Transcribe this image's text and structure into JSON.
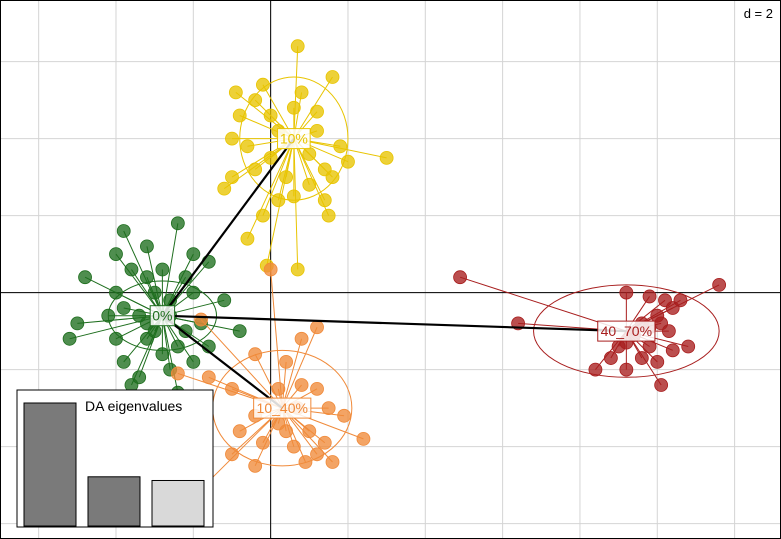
{
  "chart_data": {
    "type": "scatter",
    "corner_label": "d = 2",
    "grid_step": 1,
    "xlim": [
      -3.5,
      6.6
    ],
    "ylim": [
      -3.2,
      3.8
    ],
    "axes_origin": [
      0,
      0
    ],
    "colors": {
      "0%": "#1e6e1e",
      "10%": "#e8c400",
      "10_40%": "#f08a3a",
      "40_70%": "#a81e1e"
    },
    "groups": [
      {
        "label": "0%",
        "color": "#1e6e1e",
        "center": [
          -1.4,
          -0.3
        ],
        "ellipse": {
          "rx": 0.7,
          "ry": 0.45,
          "angle": 0
        },
        "points": [
          [
            -2.0,
            0.5
          ],
          [
            -1.9,
            0.8
          ],
          [
            -1.6,
            0.6
          ],
          [
            -1.2,
            0.9
          ],
          [
            -1.0,
            0.5
          ],
          [
            -0.8,
            0.4
          ],
          [
            -1.4,
            0.3
          ],
          [
            -2.4,
            0.2
          ],
          [
            -1.8,
            0.3
          ],
          [
            -1.6,
            0.2
          ],
          [
            -1.1,
            0.2
          ],
          [
            -2.0,
            0.0
          ],
          [
            -1.5,
            0.0
          ],
          [
            -1.0,
            0.0
          ],
          [
            -0.6,
            -0.1
          ],
          [
            -2.1,
            -0.3
          ],
          [
            -2.5,
            -0.4
          ],
          [
            -1.7,
            -0.3
          ],
          [
            -1.3,
            -0.3
          ],
          [
            -0.9,
            -0.4
          ],
          [
            -0.4,
            -0.5
          ],
          [
            -2.6,
            -0.6
          ],
          [
            -2.0,
            -0.6
          ],
          [
            -1.6,
            -0.6
          ],
          [
            -1.2,
            -0.7
          ],
          [
            -0.8,
            -0.7
          ],
          [
            -1.9,
            -0.9
          ],
          [
            -1.4,
            -0.8
          ],
          [
            -1.0,
            -0.9
          ],
          [
            -1.7,
            -1.1
          ],
          [
            -1.3,
            -1.0
          ],
          [
            -1.8,
            -1.2
          ],
          [
            -1.2,
            -1.3
          ],
          [
            -1.6,
            -0.4
          ],
          [
            -1.1,
            -0.5
          ],
          [
            -1.9,
            -0.2
          ],
          [
            -1.5,
            -0.5
          ],
          [
            -1.3,
            -0.1
          ]
        ]
      },
      {
        "label": "10%",
        "color": "#e8c400",
        "center": [
          0.3,
          2.0
        ],
        "ellipse": {
          "rx": 0.7,
          "ry": 0.8,
          "angle": 0
        },
        "points": [
          [
            0.35,
            3.2
          ],
          [
            0.8,
            2.8
          ],
          [
            -0.1,
            2.7
          ],
          [
            -0.2,
            2.5
          ],
          [
            0.0,
            2.3
          ],
          [
            0.4,
            2.6
          ],
          [
            0.6,
            2.35
          ],
          [
            -0.4,
            2.3
          ],
          [
            0.3,
            2.4
          ],
          [
            -0.5,
            2.0
          ],
          [
            -0.3,
            1.9
          ],
          [
            0.1,
            2.1
          ],
          [
            0.6,
            2.1
          ],
          [
            0.9,
            1.9
          ],
          [
            1.5,
            1.75
          ],
          [
            0.7,
            1.6
          ],
          [
            1.0,
            1.7
          ],
          [
            -0.5,
            1.5
          ],
          [
            -0.2,
            1.6
          ],
          [
            0.2,
            1.5
          ],
          [
            0.5,
            1.4
          ],
          [
            0.8,
            1.5
          ],
          [
            0.3,
            1.25
          ],
          [
            -0.6,
            1.35
          ],
          [
            0.7,
            1.2
          ],
          [
            0.1,
            1.2
          ],
          [
            -0.1,
            1.0
          ],
          [
            0.75,
            1.0
          ],
          [
            -0.3,
            0.7
          ],
          [
            0.35,
            0.3
          ],
          [
            -0.05,
            0.35
          ],
          [
            0.5,
            1.8
          ],
          [
            0.0,
            1.75
          ],
          [
            -0.45,
            2.6
          ]
        ]
      },
      {
        "label": "10_40%",
        "color": "#f08a3a",
        "center": [
          0.15,
          -1.5
        ],
        "ellipse": {
          "rx": 0.9,
          "ry": 0.75,
          "angle": 0
        },
        "points": [
          [
            0.0,
            0.3
          ],
          [
            0.6,
            -0.45
          ],
          [
            0.4,
            -0.6
          ],
          [
            -0.9,
            -0.35
          ],
          [
            -0.2,
            -0.8
          ],
          [
            0.2,
            -0.9
          ],
          [
            -0.8,
            -1.1
          ],
          [
            -1.2,
            -1.05
          ],
          [
            0.1,
            -1.25
          ],
          [
            0.4,
            -1.2
          ],
          [
            0.6,
            -1.25
          ],
          [
            -0.5,
            -1.25
          ],
          [
            0.35,
            -1.5
          ],
          [
            0.75,
            -1.5
          ],
          [
            -0.2,
            -1.6
          ],
          [
            0.95,
            -1.6
          ],
          [
            -0.4,
            -1.8
          ],
          [
            0.2,
            -1.8
          ],
          [
            0.5,
            -1.8
          ],
          [
            1.2,
            -1.9
          ],
          [
            0.7,
            -1.95
          ],
          [
            -0.1,
            -1.95
          ],
          [
            0.3,
            -2.0
          ],
          [
            -0.5,
            -2.1
          ],
          [
            0.45,
            -2.2
          ],
          [
            0.8,
            -2.2
          ],
          [
            -0.2,
            -2.25
          ],
          [
            0.6,
            -2.1
          ],
          [
            -0.95,
            -2.6
          ],
          [
            0.1,
            -1.7
          ]
        ]
      },
      {
        "label": "40_70%",
        "color": "#a81e1e",
        "center": [
          4.6,
          -0.5
        ],
        "ellipse": {
          "rx": 1.2,
          "ry": 0.6,
          "angle": 0
        },
        "points": [
          [
            2.45,
            0.2
          ],
          [
            3.2,
            -0.4
          ],
          [
            4.6,
            0.0
          ],
          [
            4.9,
            -0.05
          ],
          [
            5.1,
            -0.1
          ],
          [
            5.3,
            -0.1
          ],
          [
            5.8,
            0.1
          ],
          [
            5.2,
            -0.2
          ],
          [
            5.0,
            -0.3
          ],
          [
            4.8,
            -0.4
          ],
          [
            4.9,
            -0.45
          ],
          [
            4.7,
            -0.55
          ],
          [
            4.6,
            -0.65
          ],
          [
            5.05,
            -0.4
          ],
          [
            4.5,
            -0.7
          ],
          [
            4.4,
            -0.85
          ],
          [
            4.8,
            -0.85
          ],
          [
            5.2,
            -0.75
          ],
          [
            5.0,
            -0.9
          ],
          [
            4.6,
            -1.0
          ],
          [
            4.2,
            -1.0
          ],
          [
            5.05,
            -1.2
          ],
          [
            5.4,
            -0.7
          ],
          [
            4.9,
            -0.7
          ],
          [
            5.15,
            -0.5
          ]
        ]
      }
    ],
    "centroid_links": [
      [
        "0%",
        "10%"
      ],
      [
        "0%",
        "10_40%"
      ],
      [
        "0%",
        "40_70%"
      ]
    ],
    "inset": {
      "title": "DA eigenvalues",
      "values": [
        100,
        40,
        37
      ],
      "bar_colors": [
        "#7a7a7a",
        "#7a7a7a",
        "#d9d9d9"
      ]
    }
  }
}
